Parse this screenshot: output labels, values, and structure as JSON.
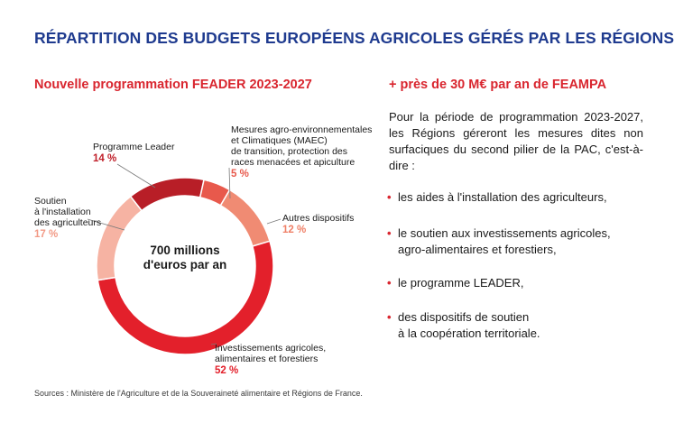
{
  "header": {
    "title": "RÉPARTITION DES BUDGETS EUROPÉENS AGRICOLES GÉRÉS PAR LES RÉGIONS"
  },
  "left": {
    "subtitle": "Nouvelle programmation FEADER 2023-2027",
    "center_line1": "700 millions",
    "center_line2": "d'euros par an"
  },
  "right": {
    "subtitle": "+ près de 30 M€ par an de FEAMPA",
    "intro": "Pour la période de programmation 2023-2027, les Régions géreront les mesures dites non surfaciques du second pilier de la PAC, c'est-à-dire :",
    "bullets": [
      "les aides à l'installation des agriculteurs,",
      "le soutien aux investissements agricoles,\nagro-alimentaires et forestiers,",
      "le programme LEADER,",
      "des dispositifs de soutien\nà la coopération territoriale."
    ]
  },
  "source": "Sources : Ministère de l'Agriculture et de la Souveraineté alimentaire et Régions de France.",
  "chart_data": {
    "type": "pie",
    "donut": true,
    "title": "Nouvelle programmation FEADER 2023-2027",
    "center_label": "700 millions d'euros par an",
    "slices": [
      {
        "label": "Programme Leader",
        "value": 14,
        "display": "14 %",
        "color": "#b81e27"
      },
      {
        "label": "Mesures agro-environnementales\net Climatiques (MAEC)\nde transition, protection des\nraces menacées et apiculture",
        "value": 5,
        "display": "5 %",
        "color": "#e8594c"
      },
      {
        "label": "Autres dispositifs",
        "value": 12,
        "display": "12 %",
        "color": "#f08b73"
      },
      {
        "label": "Investissements agricoles,\nalimentaires et forestiers",
        "value": 52,
        "display": "52 %",
        "color": "#e3202b"
      },
      {
        "label": "Soutien\nà l'installation\ndes agriculteurs",
        "value": 17,
        "display": "17 %",
        "color": "#f6b3a3"
      }
    ],
    "label_colors": {
      "Programme Leader": "#c0202a",
      "Mesures agro-environnementales\net Climatiques (MAEC)\nde transition, protection des\nraces menacées et apiculture": "#e8594c",
      "Autres dispositifs": "#ef7f66",
      "Investissements agricoles,\nalimentaires et forestiers": "#e3202b",
      "Soutien\nà l'installation\ndes agriculteurs": "#f29a86"
    }
  }
}
